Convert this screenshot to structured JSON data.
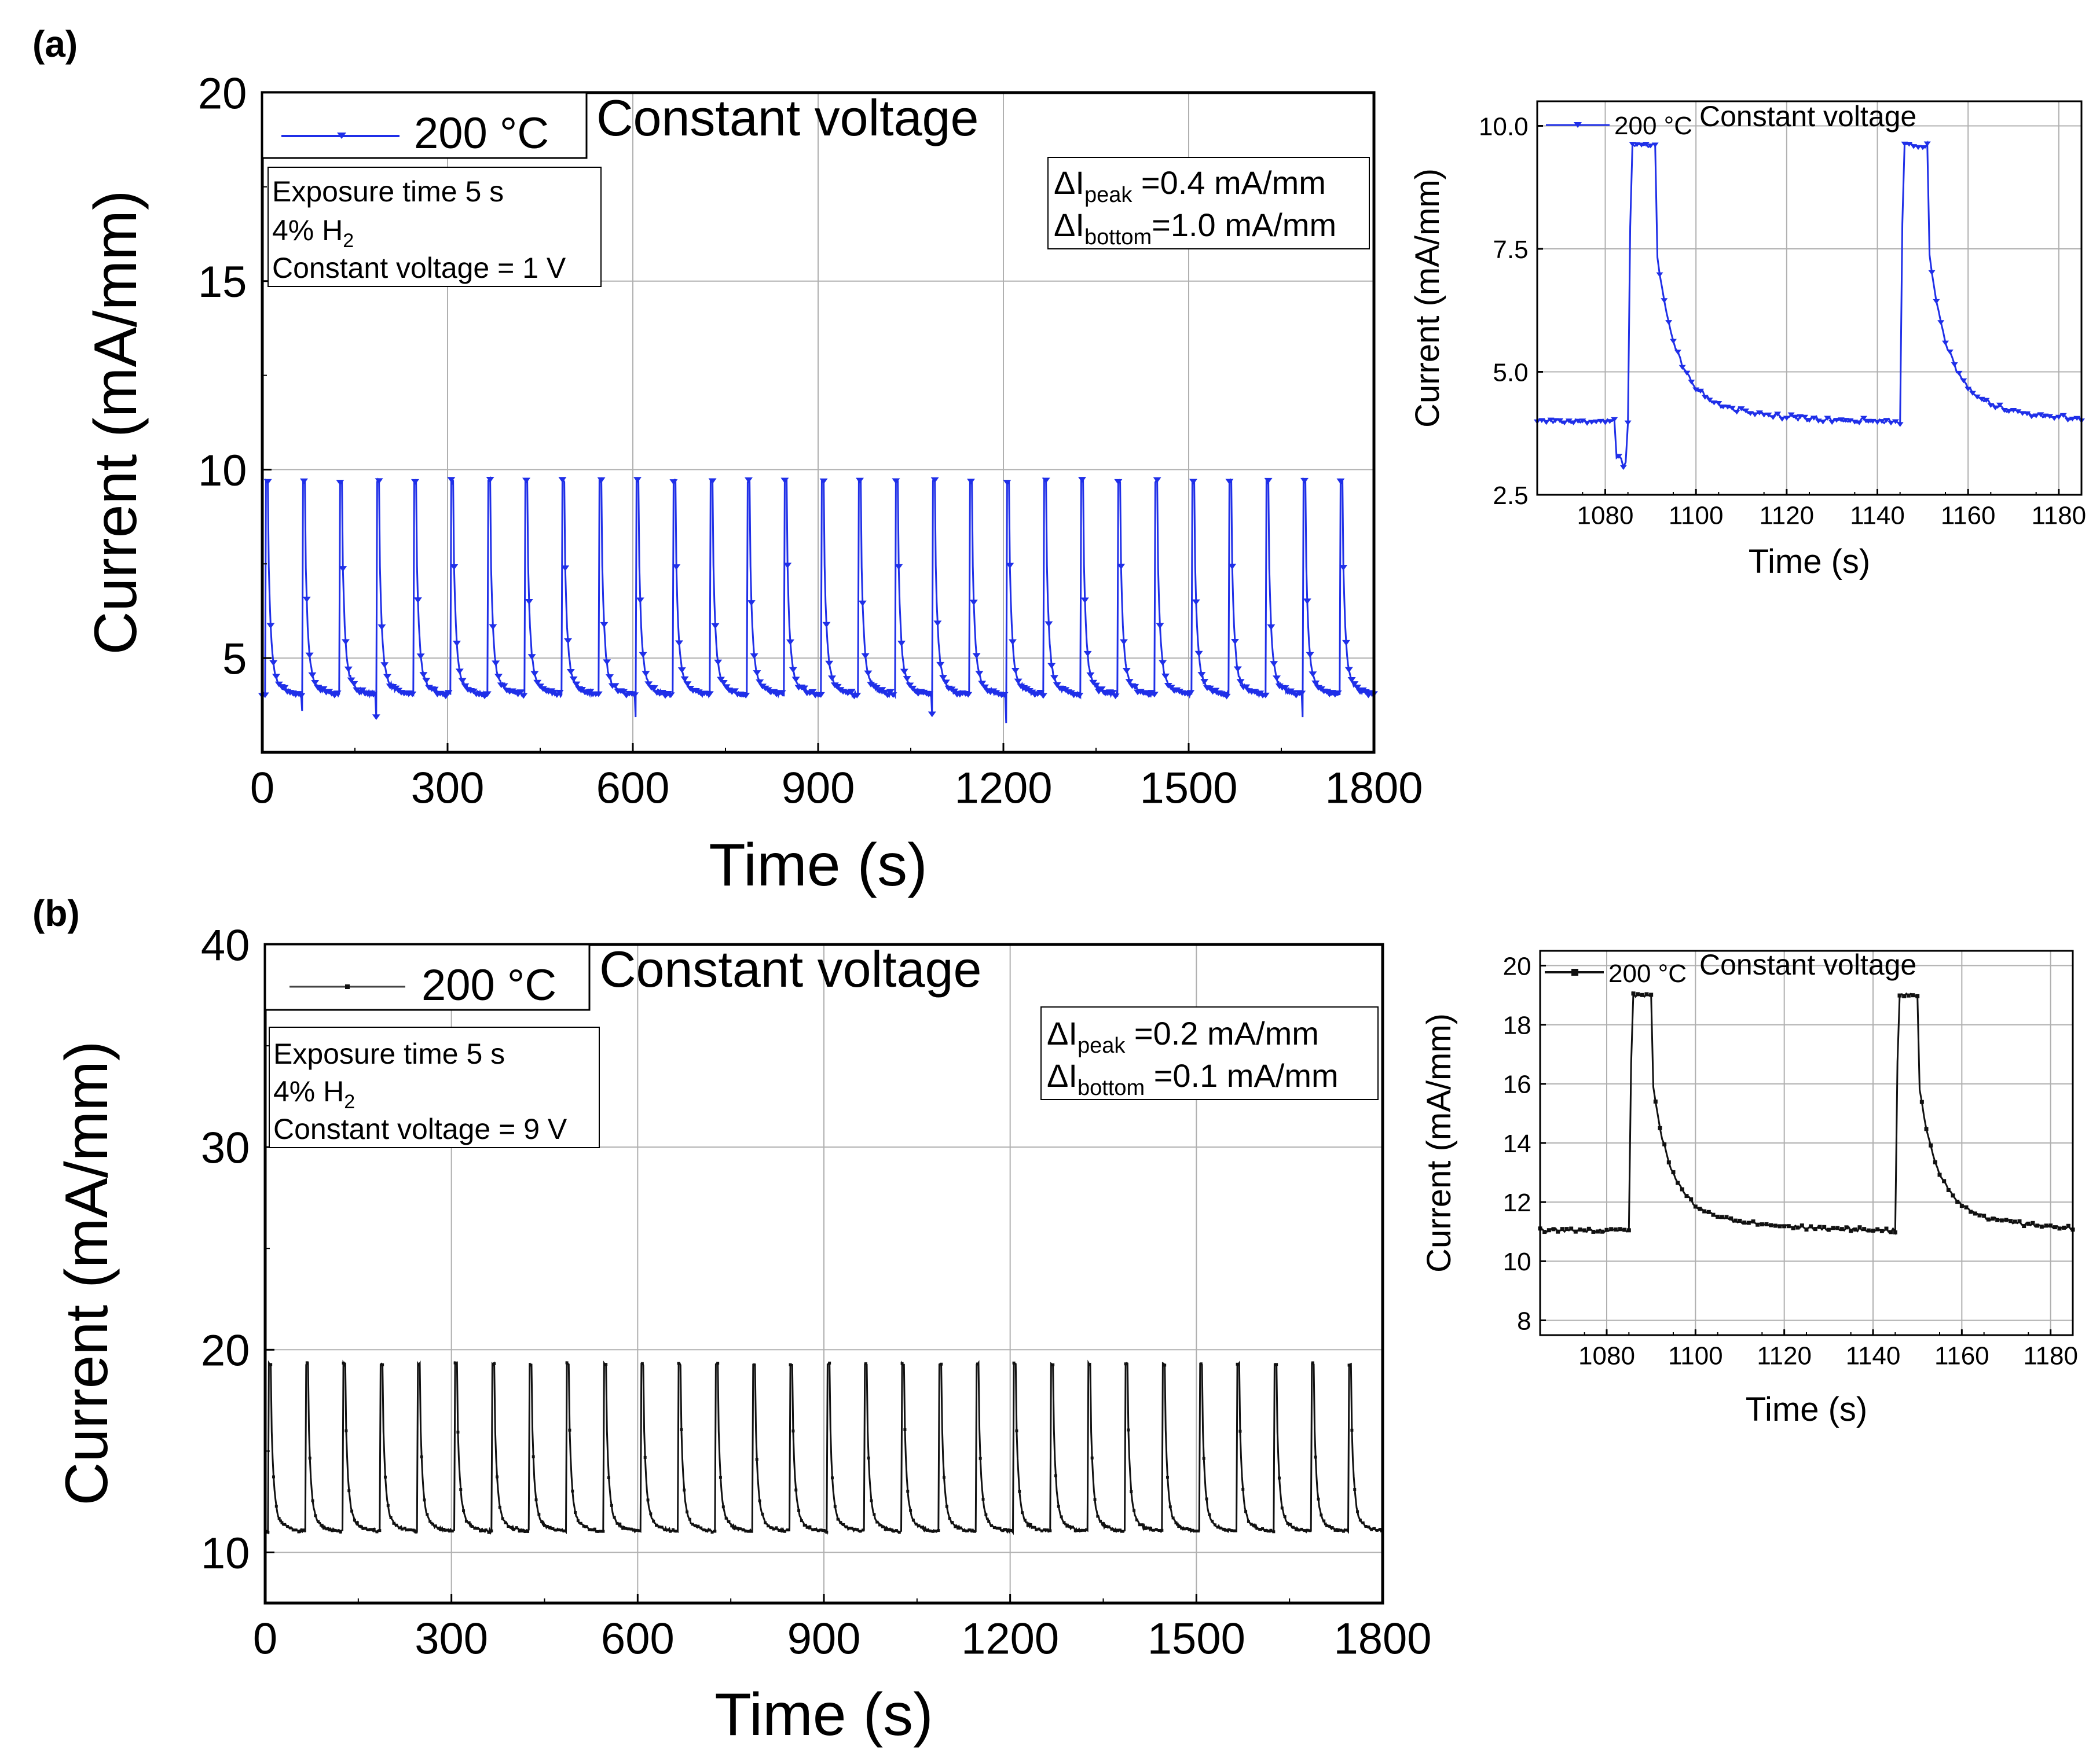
{
  "figure": {
    "panel_a_label": "(a)",
    "panel_b_label": "(b)"
  },
  "colors": {
    "series_a": "#1f2fe8",
    "series_b": "#111111",
    "grid": "#b0b0b0",
    "axis": "#000000"
  },
  "chart_data": [
    {
      "id": "a-main",
      "type": "line",
      "series": [
        {
          "name": "200 °C",
          "color": "#1f2fe8",
          "marker": "down-triangle"
        }
      ],
      "legend_label": "200 °C",
      "title": "Constant voltage",
      "xlabel": "Time (s)",
      "ylabel": "Current (mA/mm)",
      "xlim": [
        0,
        1800
      ],
      "ylim": [
        2.5,
        20
      ],
      "xticks": [
        0,
        300,
        600,
        900,
        1200,
        1500,
        1800
      ],
      "yticks": [
        5,
        10,
        15,
        20
      ],
      "pulse_period_s": 60,
      "pulse_count": 30,
      "pulse_width_s": 5,
      "peak_current": 9.7,
      "baseline_current": 4.0,
      "dip_current": 3.2,
      "info_lines": [
        "Exposure time 5 s",
        "4% H",
        "2",
        "Constant voltage = 1 V"
      ],
      "delta_peak_prefix": "ΔI",
      "delta_peak_sub": "peak",
      "delta_peak_value": " =0.4 mA/mm",
      "delta_bottom_prefix": "ΔI",
      "delta_bottom_sub": "bottom",
      "delta_bottom_value": "=1.0 mA/mm"
    },
    {
      "id": "a-inset",
      "type": "line",
      "series": [
        {
          "name": "200 °C",
          "color": "#1f2fe8",
          "marker": "down-triangle"
        }
      ],
      "legend_label": "200 °C",
      "title": "Constant voltage",
      "xlabel": "Time (s)",
      "ylabel": "Current (mA/mm)",
      "xlim": [
        1065,
        1185
      ],
      "ylim": [
        2.5,
        10.5
      ],
      "xticks": [
        1080,
        1100,
        1120,
        1140,
        1160,
        1180
      ],
      "yticks": [
        "2.5",
        "5.0",
        "7.5",
        "10.0"
      ],
      "pulses": [
        {
          "on": 1085,
          "off": 1091
        },
        {
          "on": 1145,
          "off": 1151
        }
      ],
      "peak_current": 9.6,
      "baseline_current": 3.95,
      "dip_current": 3.0
    },
    {
      "id": "b-main",
      "type": "line",
      "series": [
        {
          "name": "200 °C",
          "color": "#111111",
          "marker": "square"
        }
      ],
      "legend_label": "200 °C",
      "title": "Constant voltage",
      "xlabel": "Time (s)",
      "ylabel": "Current (mA/mm)",
      "xlim": [
        0,
        1800
      ],
      "ylim": [
        7.5,
        40
      ],
      "xticks": [
        0,
        300,
        600,
        900,
        1200,
        1500,
        1800
      ],
      "yticks": [
        10,
        20,
        30,
        40
      ],
      "pulse_period_s": 60,
      "pulse_count": 30,
      "pulse_width_s": 5,
      "peak_current": 19.3,
      "baseline_current": 11.0,
      "info_lines": [
        "Exposure time 5 s",
        "4% H",
        "2",
        "Constant voltage = 9 V"
      ],
      "delta_peak_prefix": "ΔI",
      "delta_peak_sub": "peak",
      "delta_peak_value": " =0.2 mA/mm",
      "delta_bottom_prefix": "ΔI",
      "delta_bottom_sub": "bottom",
      "delta_bottom_value": " =0.1 mA/mm"
    },
    {
      "id": "b-inset",
      "type": "line",
      "series": [
        {
          "name": "200 °C",
          "color": "#111111",
          "marker": "square"
        }
      ],
      "legend_label": "200 °C",
      "title": "Constant voltage",
      "xlabel": "Time (s)",
      "ylabel": "Current (mA/mm)",
      "xlim": [
        1065,
        1185
      ],
      "ylim": [
        7.5,
        20.5
      ],
      "xticks": [
        1080,
        1100,
        1120,
        1140,
        1160,
        1180
      ],
      "yticks": [
        8,
        10,
        12,
        14,
        16,
        18,
        20
      ],
      "pulses": [
        {
          "on": 1085,
          "off": 1090
        },
        {
          "on": 1145,
          "off": 1150
        }
      ],
      "peak_current": 19.0,
      "baseline_current": 11.0
    }
  ]
}
